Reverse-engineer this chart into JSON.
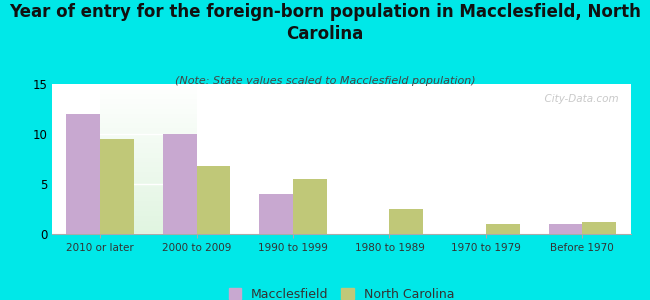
{
  "title": "Year of entry for the foreign-born population in Macclesfield, North\nCarolina",
  "subtitle": "(Note: State values scaled to Macclesfield population)",
  "categories": [
    "2010 or later",
    "2000 to 2009",
    "1990 to 1999",
    "1980 to 1989",
    "1970 to 1979",
    "Before 1970"
  ],
  "macclesfield_values": [
    12,
    10,
    4,
    0,
    0,
    1
  ],
  "nc_values": [
    9.5,
    6.8,
    5.5,
    2.5,
    1.0,
    1.2
  ],
  "macclesfield_color": "#c8a8d0",
  "nc_color": "#c0c878",
  "background_color": "#00e8e8",
  "ylim": [
    0,
    15
  ],
  "yticks": [
    0,
    5,
    10,
    15
  ],
  "bar_width": 0.35,
  "title_fontsize": 12,
  "subtitle_fontsize": 8,
  "legend_fontsize": 9,
  "watermark": "  City-Data.com"
}
